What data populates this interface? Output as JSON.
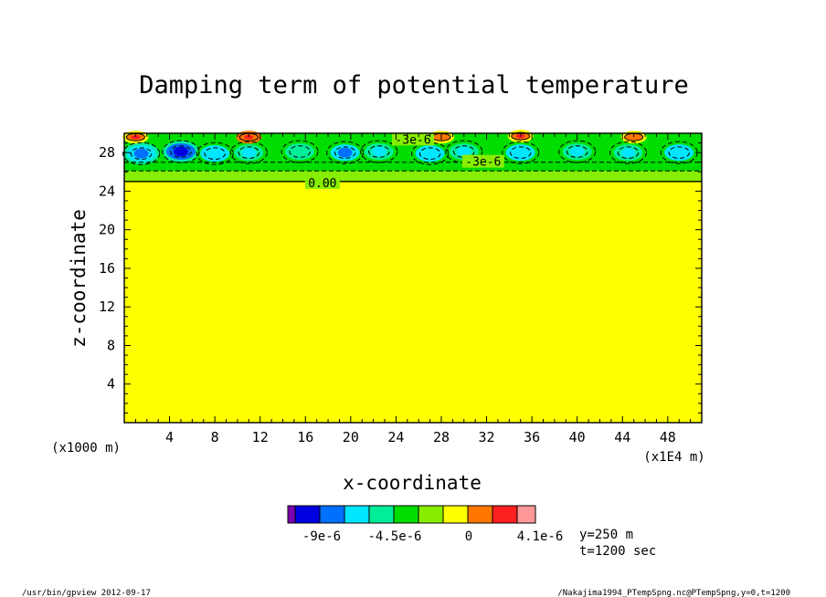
{
  "chart_data": {
    "type": "heatmap",
    "title": "Damping term of potential temperature",
    "xlabel": "x-coordinate",
    "ylabel": "z-coordinate",
    "x_scale_note": "(x1E4 m)",
    "y_scale_note": "(x1000 m)",
    "xlim": [
      0,
      51
    ],
    "ylim": [
      0,
      30
    ],
    "x_ticks": [
      4,
      8,
      12,
      16,
      20,
      24,
      28,
      32,
      36,
      40,
      44,
      48
    ],
    "y_ticks": [
      4,
      8,
      12,
      16,
      20,
      24,
      28
    ],
    "x_tick_labels": [
      "4",
      "8",
      "12",
      "16",
      "20",
      "24",
      "28",
      "32",
      "36",
      "40",
      "44",
      "48"
    ],
    "y_tick_labels": [
      "4",
      "8",
      "12",
      "16",
      "20",
      "24",
      "28"
    ],
    "background_value_range": [
      0,
      1.5e-06
    ],
    "damping_layer_z_start": 25,
    "contour_labels": [
      {
        "text": "0.00",
        "x": 17.5,
        "z": 24.9
      },
      {
        "text": "-3e-6",
        "x": 31.7,
        "z": 27.1
      },
      {
        "text": "-3e-6",
        "x": 25.5,
        "z": 29.4
      }
    ],
    "colorbar": {
      "colors": [
        "#7b00b0",
        "#0000e0",
        "#0070ff",
        "#00e6ff",
        "#00ee99",
        "#00dd00",
        "#88ee00",
        "#ffff00",
        "#ff7700",
        "#ff2020",
        "#ff9999"
      ],
      "tick_labels": [
        "-9e-6",
        "-4.5e-6",
        "0",
        "4.1e-6"
      ]
    },
    "anomalies": [
      {
        "x": 1.5,
        "z": 27.9,
        "value": -7e-06
      },
      {
        "x": 5.0,
        "z": 28.1,
        "value": -8.5e-06
      },
      {
        "x": 8.0,
        "z": 27.9,
        "value": -6e-06
      },
      {
        "x": 11.0,
        "z": 28.0,
        "value": -5e-06
      },
      {
        "x": 15.5,
        "z": 28.1,
        "value": -4e-06
      },
      {
        "x": 19.5,
        "z": 28.0,
        "value": -6.5e-06
      },
      {
        "x": 22.5,
        "z": 28.1,
        "value": -5.5e-06
      },
      {
        "x": 27.0,
        "z": 27.9,
        "value": -6e-06
      },
      {
        "x": 30.0,
        "z": 28.1,
        "value": -5e-06
      },
      {
        "x": 35.0,
        "z": 28.0,
        "value": -6e-06
      },
      {
        "x": 40.0,
        "z": 28.1,
        "value": -5.5e-06
      },
      {
        "x": 44.5,
        "z": 28.0,
        "value": -5e-06
      },
      {
        "x": 49.0,
        "z": 28.0,
        "value": -6e-06
      },
      {
        "x": 1.0,
        "z": 29.6,
        "value": 3e-06
      },
      {
        "x": 11.0,
        "z": 29.6,
        "value": 3.5e-06
      },
      {
        "x": 28.0,
        "z": 29.6,
        "value": 2.5e-06
      },
      {
        "x": 35.0,
        "z": 29.7,
        "value": 3e-06
      },
      {
        "x": 45.0,
        "z": 29.6,
        "value": 2.5e-06
      }
    ]
  },
  "info": {
    "y_position": "y=250 m",
    "time": "t=1200 sec"
  },
  "footer": {
    "left": "/usr/bin/gpview  2012-09-17",
    "right": "/Nakajima1994_PTempSpng.nc@PTempSpng,y=0,t=1200"
  }
}
